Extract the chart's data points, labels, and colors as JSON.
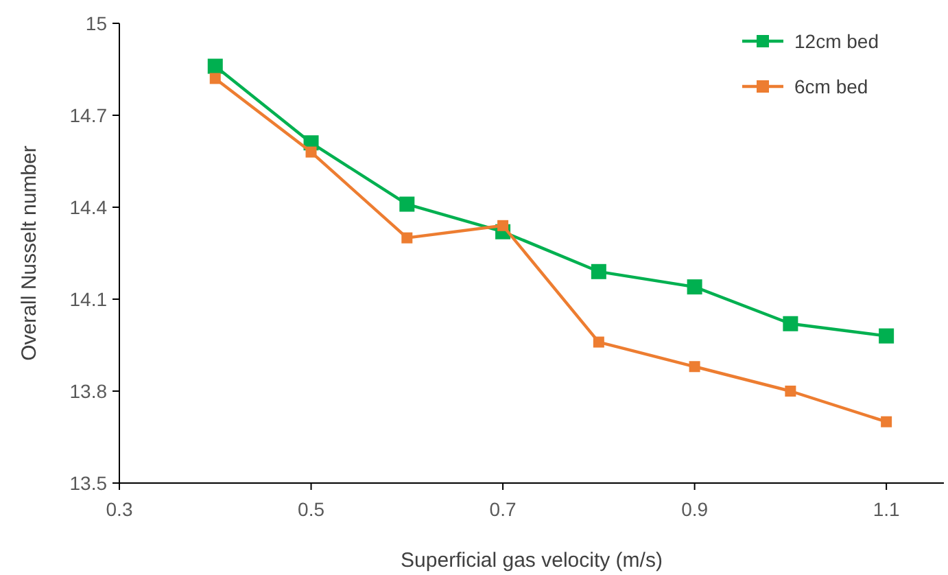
{
  "chart_data": {
    "type": "line",
    "xlabel": "Superficial gas velocity (m/s)",
    "ylabel": "Overall Nusselt number",
    "x": [
      0.4,
      0.5,
      0.6,
      0.7,
      0.8,
      0.9,
      1.0,
      1.1
    ],
    "series": [
      {
        "name": "12cm bed",
        "color": "#00b050",
        "values": [
          14.86,
          14.61,
          14.41,
          14.32,
          14.19,
          14.14,
          14.02,
          13.98
        ]
      },
      {
        "name": "6cm bed",
        "color": "#ed7d31",
        "values": [
          14.82,
          14.58,
          14.3,
          14.34,
          13.96,
          13.88,
          13.8,
          13.7
        ]
      }
    ],
    "xlim": [
      0.3,
      1.16
    ],
    "xticks": [
      0.3,
      0.5,
      0.7,
      0.9,
      1.1
    ],
    "ylim": [
      13.5,
      15
    ],
    "yticks": [
      13.5,
      13.8,
      14.1,
      14.4,
      14.7,
      15
    ],
    "legend": "top right",
    "marker": "square",
    "line_style": "solid"
  }
}
